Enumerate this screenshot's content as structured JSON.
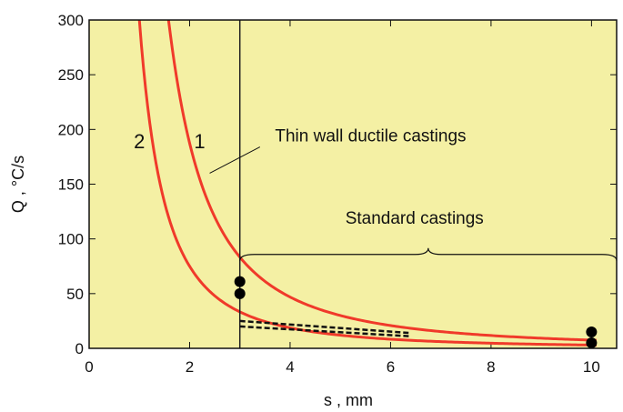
{
  "chart_data": {
    "type": "line",
    "xlabel": "s , mm",
    "ylabel": "Q , °C/s",
    "xlim": [
      0,
      10.5
    ],
    "ylim": [
      0,
      300
    ],
    "x_ticks": [
      0,
      2,
      4,
      6,
      8,
      10
    ],
    "y_ticks": [
      0,
      50,
      100,
      150,
      200,
      250,
      300
    ],
    "background_color": "#f4f0a4",
    "curve_color": "#f03a2a",
    "series": [
      {
        "name": "1",
        "type": "curve",
        "k": 750,
        "n": 2,
        "x_range": [
          1.58,
          10.1
        ]
      },
      {
        "name": "2",
        "type": "curve",
        "k": 300,
        "n": 2,
        "x_range": [
          1.0,
          10.1
        ]
      }
    ],
    "reference_line": {
      "x": 3
    },
    "dashed_segments": [
      {
        "x": [
          3,
          6.4
        ],
        "y": [
          25,
          14
        ]
      },
      {
        "x": [
          3,
          6.4
        ],
        "y": [
          20,
          11
        ]
      }
    ],
    "points": [
      {
        "x": 3,
        "y": 61
      },
      {
        "x": 3,
        "y": 50
      },
      {
        "x": 10,
        "y": 15
      },
      {
        "x": 10,
        "y": 5
      }
    ],
    "annotations": [
      {
        "text": "Thin wall ductile castings",
        "x": 3.7,
        "y": 189,
        "pointer_from": [
          3.4,
          184
        ],
        "pointer_to": [
          2.4,
          160
        ]
      },
      {
        "text": "Standard castings",
        "x": 5.1,
        "y": 114
      }
    ],
    "curve_labels": [
      {
        "text": "2",
        "x": 1.0,
        "y": 183
      },
      {
        "text": "1",
        "x": 2.2,
        "y": 183
      }
    ],
    "brace": {
      "x_start": 3,
      "x_end": 10.5,
      "y": 80,
      "height": 14
    }
  }
}
